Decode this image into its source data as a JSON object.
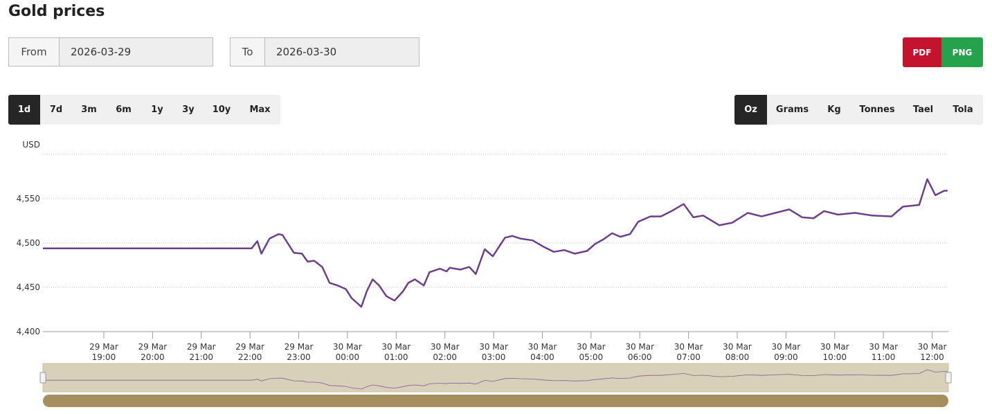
{
  "header": {
    "title": "Gold prices"
  },
  "filters": {
    "from_label": "From",
    "from_value": "2026-03-29",
    "to_label": "To",
    "to_value": "2026-03-30"
  },
  "export": {
    "pdf": "PDF",
    "png": "PNG"
  },
  "ranges": {
    "items": [
      "1d",
      "7d",
      "3m",
      "6m",
      "1y",
      "3y",
      "10y",
      "Max"
    ],
    "active": "1d"
  },
  "units": {
    "items": [
      "Oz",
      "Grams",
      "Kg",
      "Tonnes",
      "Tael",
      "Tola"
    ],
    "active": "Oz"
  },
  "chart_data": {
    "type": "line",
    "y_label": "USD",
    "color": "#6d3f8a",
    "grid": true,
    "xlim": [
      "2026-03-29 17:45",
      "2026-03-30 12:20"
    ],
    "ylim": [
      4400,
      4600
    ],
    "yticks": [
      {
        "value": 4400,
        "label": "4,400"
      },
      {
        "value": 4450,
        "label": "4,450"
      },
      {
        "value": 4500,
        "label": "4,500"
      },
      {
        "value": 4550,
        "label": "4,550"
      }
    ],
    "xticks": [
      {
        "value": "2026-03-29 19:00",
        "label": [
          "29 Mar",
          "19:00"
        ]
      },
      {
        "value": "2026-03-29 20:00",
        "label": [
          "29 Mar",
          "20:00"
        ]
      },
      {
        "value": "2026-03-29 21:00",
        "label": [
          "29 Mar",
          "21:00"
        ]
      },
      {
        "value": "2026-03-29 22:00",
        "label": [
          "29 Mar",
          "22:00"
        ]
      },
      {
        "value": "2026-03-29 23:00",
        "label": [
          "29 Mar",
          "23:00"
        ]
      },
      {
        "value": "2026-03-30 00:00",
        "label": [
          "30 Mar",
          "00:00"
        ]
      },
      {
        "value": "2026-03-30 01:00",
        "label": [
          "30 Mar",
          "01:00"
        ]
      },
      {
        "value": "2026-03-30 02:00",
        "label": [
          "30 Mar",
          "02:00"
        ]
      },
      {
        "value": "2026-03-30 03:00",
        "label": [
          "30 Mar",
          "03:00"
        ]
      },
      {
        "value": "2026-03-30 04:00",
        "label": [
          "30 Mar",
          "04:00"
        ]
      },
      {
        "value": "2026-03-30 05:00",
        "label": [
          "30 Mar",
          "05:00"
        ]
      },
      {
        "value": "2026-03-30 06:00",
        "label": [
          "30 Mar",
          "06:00"
        ]
      },
      {
        "value": "2026-03-30 07:00",
        "label": [
          "30 Mar",
          "07:00"
        ]
      },
      {
        "value": "2026-03-30 08:00",
        "label": [
          "30 Mar",
          "08:00"
        ]
      },
      {
        "value": "2026-03-30 09:00",
        "label": [
          "30 Mar",
          "09:00"
        ]
      },
      {
        "value": "2026-03-30 10:00",
        "label": [
          "30 Mar",
          "10:00"
        ]
      },
      {
        "value": "2026-03-30 11:00",
        "label": [
          "30 Mar",
          "11:00"
        ]
      },
      {
        "value": "2026-03-30 12:00",
        "label": [
          "30 Mar",
          "12:00"
        ]
      }
    ],
    "x": [
      "2026-03-29 17:45",
      "2026-03-29 22:02",
      "2026-03-29 22:09",
      "2026-03-29 22:14",
      "2026-03-29 22:24",
      "2026-03-29 22:35",
      "2026-03-29 22:40",
      "2026-03-29 22:54",
      "2026-03-29 23:04",
      "2026-03-29 23:11",
      "2026-03-29 23:19",
      "2026-03-29 23:29",
      "2026-03-29 23:38",
      "2026-03-29 23:48",
      "2026-03-29 23:58",
      "2026-03-30 00:05",
      "2026-03-30 00:17",
      "2026-03-30 00:24",
      "2026-03-30 00:31",
      "2026-03-30 00:39",
      "2026-03-30 00:48",
      "2026-03-30 00:58",
      "2026-03-30 01:08",
      "2026-03-30 01:15",
      "2026-03-30 01:23",
      "2026-03-30 01:34",
      "2026-03-30 01:41",
      "2026-03-30 01:54",
      "2026-03-30 02:02",
      "2026-03-30 02:06",
      "2026-03-30 02:19",
      "2026-03-30 02:30",
      "2026-03-30 02:38",
      "2026-03-30 02:49",
      "2026-03-30 02:59",
      "2026-03-30 03:14",
      "2026-03-30 03:23",
      "2026-03-30 03:33",
      "2026-03-30 03:48",
      "2026-03-30 04:01",
      "2026-03-30 04:14",
      "2026-03-30 04:27",
      "2026-03-30 04:40",
      "2026-03-30 04:55",
      "2026-03-30 05:05",
      "2026-03-30 05:15",
      "2026-03-30 05:26",
      "2026-03-30 05:36",
      "2026-03-30 05:48",
      "2026-03-30 05:58",
      "2026-03-30 06:13",
      "2026-03-30 06:26",
      "2026-03-30 06:39",
      "2026-03-30 06:54",
      "2026-03-30 07:06",
      "2026-03-30 07:18",
      "2026-03-30 07:38",
      "2026-03-30 07:54",
      "2026-03-30 08:13",
      "2026-03-30 08:30",
      "2026-03-30 08:47",
      "2026-03-30 09:04",
      "2026-03-30 09:20",
      "2026-03-30 09:34",
      "2026-03-30 09:47",
      "2026-03-30 10:04",
      "2026-03-30 10:25",
      "2026-03-30 10:46",
      "2026-03-30 11:10",
      "2026-03-30 11:24",
      "2026-03-30 11:44",
      "2026-03-30 11:54",
      "2026-03-30 12:04",
      "2026-03-30 12:15",
      "2026-03-30 12:19"
    ],
    "values": [
      4494,
      4494,
      4502,
      4488,
      4505,
      4510,
      4509,
      4489,
      4488,
      4479,
      4480,
      4473,
      4455,
      4452,
      4448,
      4438,
      4428,
      4446,
      4459,
      4452,
      4440,
      4435,
      4445,
      4455,
      4459,
      4452,
      4467,
      4471,
      4468,
      4472,
      4470,
      4473,
      4465,
      4493,
      4485,
      4506,
      4508,
      4505,
      4503,
      4496,
      4490,
      4492,
      4488,
      4491,
      4499,
      4504,
      4511,
      4507,
      4510,
      4524,
      4530,
      4530,
      4536,
      4544,
      4529,
      4531,
      4520,
      4523,
      4534,
      4530,
      4534,
      4538,
      4529,
      4528,
      4536,
      4532,
      4534,
      4531,
      4530,
      4541,
      4543,
      4572,
      4554,
      4559,
      4559
    ]
  }
}
